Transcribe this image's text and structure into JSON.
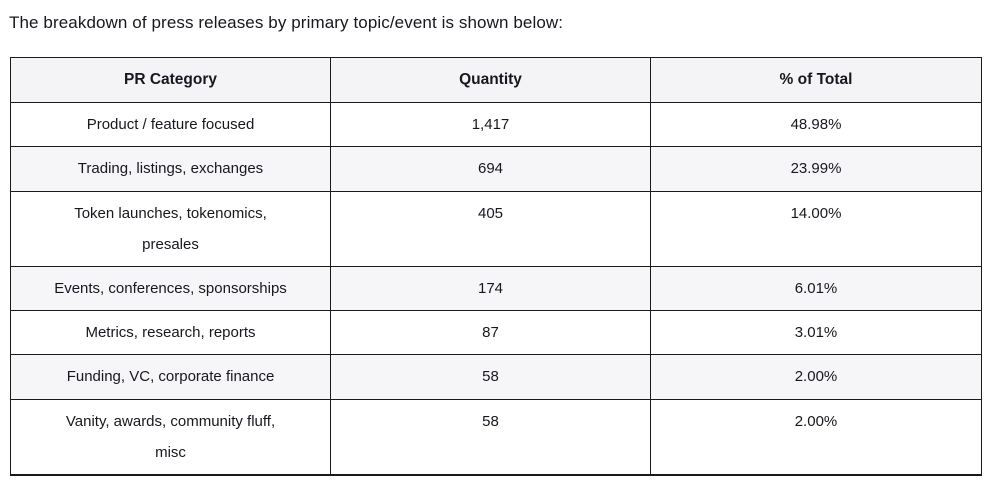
{
  "heading": "The breakdown of press releases by primary topic/event is shown below:",
  "table": {
    "columns": [
      "PR Category",
      "Quantity",
      "% of Total"
    ],
    "rows": [
      {
        "category": "Product / feature focused",
        "quantity": "1,417",
        "percent": "48.98%"
      },
      {
        "category": "Trading, listings, exchanges",
        "quantity": "694",
        "percent": "23.99%"
      },
      {
        "category": "Token launches, tokenomics,\npresales",
        "quantity": "405",
        "percent": "14.00%"
      },
      {
        "category": "Events, conferences, sponsorships",
        "quantity": "174",
        "percent": "6.01%"
      },
      {
        "category": "Metrics, research, reports",
        "quantity": "87",
        "percent": "3.01%"
      },
      {
        "category": "Funding, VC, corporate finance",
        "quantity": "58",
        "percent": "2.00%"
      },
      {
        "category": "Vanity, awards, community fluff,\nmisc",
        "quantity": "58",
        "percent": "2.00%"
      }
    ]
  },
  "colors": {
    "text": "#17171f",
    "border": "#1a1a1a",
    "header_background": "#f4f4f6",
    "stripe_background": "#f6f6f8",
    "row_background": "#ffffff"
  }
}
